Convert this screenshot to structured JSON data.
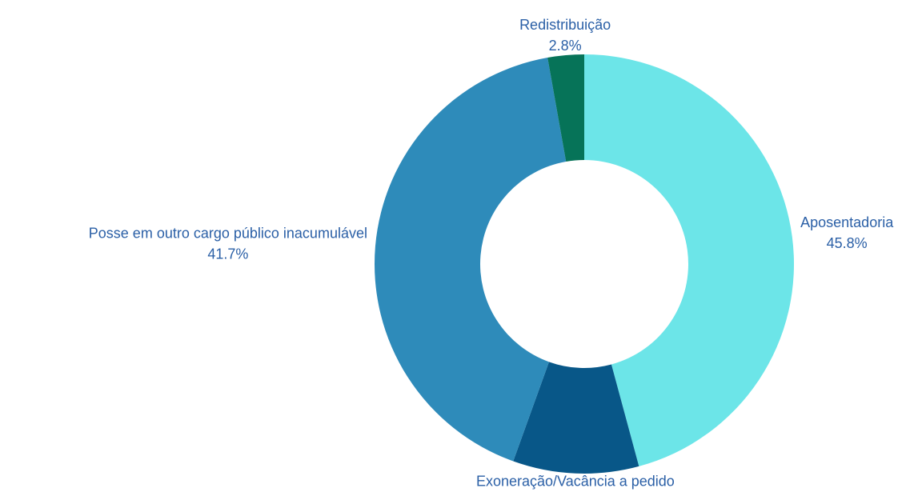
{
  "chart_data": {
    "type": "donut",
    "categories": [
      "Aposentadoria",
      "Exoneração/Vacância a pedido",
      "Posse em outro cargo público inacumulável",
      "Redistribuição"
    ],
    "values": [
      45.8,
      9.7,
      41.7,
      2.8
    ],
    "value_labels": [
      "45.8%",
      "9.7%",
      "41.7%",
      "2.8%"
    ],
    "colors": [
      "#6ce5e8",
      "#085788",
      "#2e8bba",
      "#067358"
    ]
  }
}
